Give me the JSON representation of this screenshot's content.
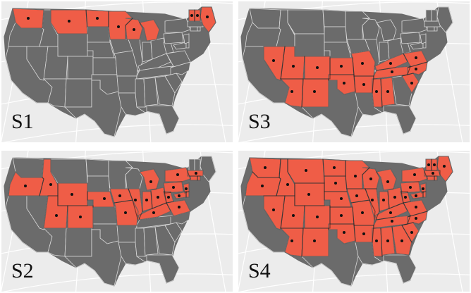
{
  "colors": {
    "background": "#ececec",
    "graticule": "#ffffff",
    "land": "#6b6b6b",
    "state_borders": "#d9d9d9",
    "selected_fill": "#ef5d47",
    "selected_outline": "#111111",
    "centroid_dot": "#111111"
  },
  "panels": [
    {
      "id": "s1",
      "label": "S1",
      "selected_states": [
        "WA",
        "MT",
        "ND",
        "MN",
        "WI",
        "MI",
        "ME",
        "NH",
        "VT"
      ],
      "marked_states": [
        "WA",
        "MT",
        "ND",
        "MN",
        "WI",
        "ME",
        "NH",
        "VT"
      ]
    },
    {
      "id": "s3",
      "label": "S3",
      "selected_states": [
        "NV",
        "AZ",
        "UT",
        "CO",
        "NM",
        "KS",
        "OK",
        "MO",
        "AR",
        "TN",
        "KY",
        "VA",
        "NC",
        "SC",
        "MS",
        "AL"
      ],
      "marked_states": [
        "NV",
        "AZ",
        "UT",
        "CO",
        "NM",
        "KS",
        "OK",
        "MO",
        "AR",
        "TN",
        "KY",
        "VA",
        "NC",
        "SC",
        "MS",
        "AL"
      ]
    },
    {
      "id": "s2",
      "label": "S2",
      "selected_states": [
        "OR",
        "ID",
        "WY",
        "NE",
        "UT",
        "CO",
        "IA",
        "IL",
        "IN",
        "OH",
        "MI",
        "PA",
        "NY",
        "WV",
        "MD",
        "DE",
        "NJ",
        "CT",
        "RI",
        "MA",
        "VA",
        "KY",
        "MO"
      ],
      "marked_states": [
        "OR",
        "ID",
        "WY",
        "NE",
        "UT",
        "CO",
        "IA",
        "IL",
        "IN",
        "OH",
        "MI",
        "PA",
        "NY",
        "WV",
        "MD",
        "NJ",
        "MA",
        "VA",
        "KY",
        "MO"
      ]
    },
    {
      "id": "s4",
      "label": "S4",
      "selected_states": [
        "WA",
        "OR",
        "NV",
        "ID",
        "MT",
        "WY",
        "UT",
        "CO",
        "AZ",
        "NM",
        "ND",
        "SD",
        "NE",
        "KS",
        "OK",
        "MN",
        "IA",
        "MO",
        "AR",
        "WI",
        "IL",
        "MI",
        "IN",
        "OH",
        "KY",
        "TN",
        "MS",
        "AL",
        "GA",
        "SC",
        "NC",
        "VA",
        "WV",
        "PA",
        "NY",
        "MD",
        "DE",
        "NJ",
        "CT",
        "RI",
        "MA",
        "VT",
        "NH",
        "ME"
      ],
      "marked_states": [
        "WA",
        "OR",
        "NV",
        "ID",
        "MT",
        "WY",
        "UT",
        "CO",
        "AZ",
        "NM",
        "ND",
        "SD",
        "NE",
        "KS",
        "OK",
        "MN",
        "IA",
        "MO",
        "AR",
        "WI",
        "IL",
        "MI",
        "IN",
        "OH",
        "KY",
        "TN",
        "MS",
        "AL",
        "GA",
        "SC",
        "NC",
        "VA",
        "WV",
        "PA",
        "NY",
        "MD",
        "NJ",
        "MA",
        "VT",
        "NH",
        "ME"
      ]
    }
  ]
}
